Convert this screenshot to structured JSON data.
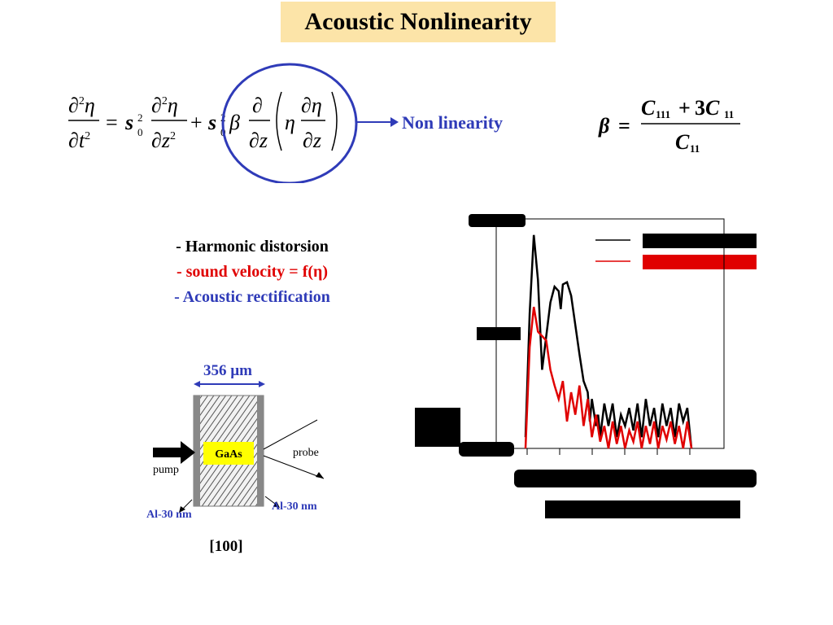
{
  "slide": {
    "title": "Acoustic Nonlinearity"
  },
  "equation": {
    "nonlinearity_label": "Non linearity"
  },
  "bullets": [
    {
      "text": "- Harmonic distorsion",
      "color": "#000000"
    },
    {
      "text": "- sound velocity = f(η)",
      "color": "#e00000"
    },
    {
      "text": "- Acoustic rectification",
      "color": "#2f3bb8"
    }
  ],
  "sample_diagram": {
    "thickness": "356 µm",
    "material": "GaAs",
    "pump": "pump",
    "probe": "probe",
    "left_film": "Al-30 nm",
    "right_film": "Al-30 nm",
    "orientation": "[100]"
  },
  "colors": {
    "accent_blue": "#2f3bb8",
    "red": "#e00000",
    "title_bg": "#fce4a8",
    "gaas_fill": "#ffff00"
  },
  "chart_data": {
    "type": "line",
    "title": "",
    "xlabel": "",
    "ylabel": "",
    "legend": "top-right",
    "axis_text_legible": false,
    "series": [
      {
        "name": "",
        "color": "#000000",
        "x": [
          0,
          0.02,
          0.04,
          0.06,
          0.08,
          0.1,
          0.12,
          0.14,
          0.16,
          0.17,
          0.18,
          0.2,
          0.22,
          0.24,
          0.26,
          0.28,
          0.3,
          0.31,
          0.32,
          0.34,
          0.35,
          0.36,
          0.38,
          0.4,
          0.42,
          0.44,
          0.46,
          0.48,
          0.5,
          0.52,
          0.54,
          0.56,
          0.58,
          0.6,
          0.62,
          0.64,
          0.66,
          0.68,
          0.7,
          0.72,
          0.74,
          0.76,
          0.78,
          0.8
        ],
        "y": [
          0.05,
          0.6,
          0.95,
          0.75,
          0.35,
          0.5,
          0.65,
          0.72,
          0.7,
          0.62,
          0.73,
          0.74,
          0.68,
          0.55,
          0.42,
          0.3,
          0.25,
          0.12,
          0.22,
          0.1,
          0.15,
          0.05,
          0.2,
          0.1,
          0.2,
          0.05,
          0.15,
          0.1,
          0.18,
          0.08,
          0.2,
          0.05,
          0.22,
          0.1,
          0.18,
          0.05,
          0.2,
          0.1,
          0.18,
          0.05,
          0.2,
          0.12,
          0.18,
          0.0
        ]
      },
      {
        "name": "",
        "color": "#e00000",
        "x": [
          0,
          0.02,
          0.04,
          0.06,
          0.08,
          0.1,
          0.12,
          0.14,
          0.16,
          0.18,
          0.2,
          0.22,
          0.24,
          0.26,
          0.28,
          0.3,
          0.32,
          0.34,
          0.36,
          0.38,
          0.4,
          0.42,
          0.44,
          0.46,
          0.48,
          0.5,
          0.52,
          0.54,
          0.56,
          0.58,
          0.6,
          0.62,
          0.64,
          0.66,
          0.68,
          0.7,
          0.72,
          0.74,
          0.76,
          0.78,
          0.8
        ],
        "y": [
          0.0,
          0.45,
          0.63,
          0.52,
          0.5,
          0.48,
          0.35,
          0.28,
          0.22,
          0.3,
          0.12,
          0.25,
          0.15,
          0.28,
          0.1,
          0.22,
          0.05,
          0.15,
          0.03,
          0.1,
          0.0,
          0.12,
          0.02,
          0.1,
          0.0,
          0.08,
          0.03,
          0.12,
          0.0,
          0.1,
          0.02,
          0.12,
          0.0,
          0.1,
          0.04,
          0.12,
          0.02,
          0.1,
          0.0,
          0.12,
          0.0
        ]
      }
    ]
  }
}
